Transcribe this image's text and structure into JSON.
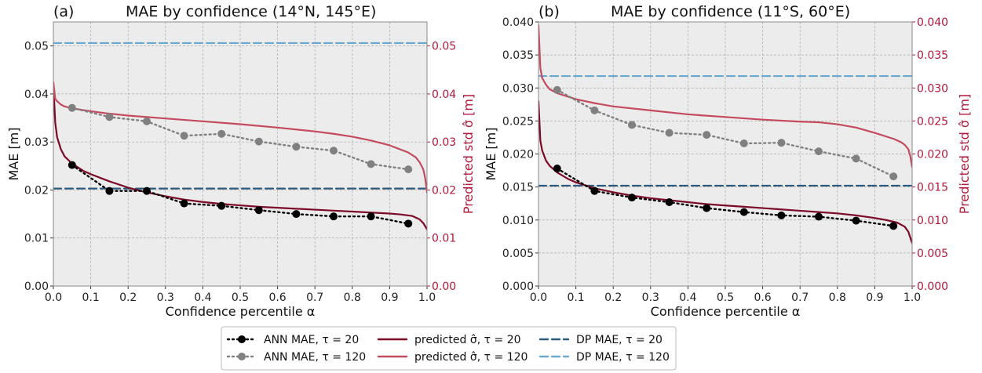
{
  "chart_data": [
    {
      "type": "line",
      "panel_label": "(a)",
      "title": "MAE by confidence (14°N, 145°E)",
      "xlabel": "Confidence percentile α",
      "ylabel": "MAE [m]",
      "ylabel_right": "Predicted std σ̂ [m]",
      "xlim": [
        0,
        1
      ],
      "ylim": [
        0,
        0.055
      ],
      "ylim_right": [
        0,
        0.055
      ],
      "xticks": [
        "0.0",
        "0.1",
        "0.2",
        "0.3",
        "0.4",
        "0.5",
        "0.6",
        "0.7",
        "0.8",
        "0.9",
        "1.0"
      ],
      "yticks": [
        "0.00",
        "0.01",
        "0.02",
        "0.03",
        "0.04",
        "0.05"
      ],
      "yticks_right": [
        "0.00",
        "0.01",
        "0.02",
        "0.03",
        "0.04",
        "0.05"
      ],
      "grid": true,
      "series": [
        {
          "name": "ANN MAE, τ = 20",
          "style": "dotted-marker",
          "color": "#000000",
          "x": [
            0.05,
            0.15,
            0.25,
            0.35,
            0.45,
            0.55,
            0.65,
            0.75,
            0.85,
            0.95
          ],
          "y": [
            0.0252,
            0.0198,
            0.0198,
            0.0172,
            0.0167,
            0.0158,
            0.015,
            0.0145,
            0.0145,
            0.013
          ]
        },
        {
          "name": "ANN MAE, τ = 120",
          "style": "dotted-marker",
          "color": "#808080",
          "x": [
            0.05,
            0.15,
            0.25,
            0.35,
            0.45,
            0.55,
            0.65,
            0.75,
            0.85,
            0.95
          ],
          "y": [
            0.0371,
            0.0352,
            0.0343,
            0.0313,
            0.0317,
            0.0301,
            0.029,
            0.0282,
            0.0254,
            0.0243
          ]
        },
        {
          "name": "predicted σ̂, τ = 20",
          "style": "solid",
          "color": "#7a0a25",
          "x": [
            0,
            0.005,
            0.01,
            0.02,
            0.03,
            0.05,
            0.08,
            0.1,
            0.15,
            0.2,
            0.25,
            0.3,
            0.35,
            0.4,
            0.45,
            0.5,
            0.55,
            0.6,
            0.65,
            0.7,
            0.75,
            0.8,
            0.85,
            0.9,
            0.93,
            0.96,
            0.98,
            0.99,
            1.0
          ],
          "y": [
            0.042,
            0.034,
            0.031,
            0.0285,
            0.027,
            0.0255,
            0.024,
            0.0233,
            0.0218,
            0.0205,
            0.0195,
            0.0187,
            0.018,
            0.0175,
            0.0171,
            0.0168,
            0.0165,
            0.0163,
            0.0161,
            0.0159,
            0.0157,
            0.0155,
            0.0153,
            0.0151,
            0.0149,
            0.0146,
            0.0139,
            0.0131,
            0.0118
          ]
        },
        {
          "name": "predicted σ̂, τ = 120",
          "style": "solid",
          "color": "#c44a5e",
          "x": [
            0,
            0.005,
            0.01,
            0.02,
            0.03,
            0.05,
            0.1,
            0.15,
            0.2,
            0.3,
            0.4,
            0.5,
            0.6,
            0.7,
            0.75,
            0.8,
            0.85,
            0.9,
            0.95,
            0.97,
            0.98,
            0.99,
            0.995,
            1.0
          ],
          "y": [
            0.0425,
            0.039,
            0.0385,
            0.0378,
            0.0374,
            0.037,
            0.0364,
            0.0359,
            0.0355,
            0.0349,
            0.0343,
            0.0337,
            0.033,
            0.0322,
            0.0317,
            0.0311,
            0.0303,
            0.0293,
            0.0278,
            0.0268,
            0.0258,
            0.0243,
            0.0225,
            0.0195
          ]
        },
        {
          "name": "DP MAE, τ = 20",
          "style": "dashed",
          "color": "#2a5a7f",
          "x": [
            0,
            1
          ],
          "y": [
            0.0203,
            0.0203
          ]
        },
        {
          "name": "DP MAE, τ = 120",
          "style": "dashed",
          "color": "#6aa9cf",
          "x": [
            0,
            1
          ],
          "y": [
            0.0506,
            0.0506
          ]
        }
      ]
    },
    {
      "type": "line",
      "panel_label": "(b)",
      "title": "MAE by confidence (11°S, 60°E)",
      "xlabel": "Confidence percentile α",
      "ylabel": "MAE [m]",
      "ylabel_right": "Predicted std σ̂ [m]",
      "xlim": [
        0,
        1
      ],
      "ylim": [
        0,
        0.04
      ],
      "ylim_right": [
        0,
        0.04
      ],
      "xticks": [
        "0.0",
        "0.1",
        "0.2",
        "0.3",
        "0.4",
        "0.5",
        "0.6",
        "0.7",
        "0.8",
        "0.9",
        "1.0"
      ],
      "yticks": [
        "0.000",
        "0.005",
        "0.010",
        "0.015",
        "0.020",
        "0.025",
        "0.030",
        "0.035",
        "0.040"
      ],
      "yticks_right": [
        "0.000",
        "0.005",
        "0.010",
        "0.015",
        "0.020",
        "0.025",
        "0.030",
        "0.035",
        "0.040"
      ],
      "grid": true,
      "series": [
        {
          "name": "ANN MAE, τ = 20",
          "style": "dotted-marker",
          "color": "#000000",
          "x": [
            0.05,
            0.15,
            0.25,
            0.35,
            0.45,
            0.55,
            0.65,
            0.75,
            0.85,
            0.95
          ],
          "y": [
            0.0178,
            0.0144,
            0.0134,
            0.0127,
            0.0118,
            0.0112,
            0.0107,
            0.0105,
            0.0099,
            0.0091
          ]
        },
        {
          "name": "ANN MAE, τ = 120",
          "style": "dotted-marker",
          "color": "#808080",
          "x": [
            0.05,
            0.15,
            0.25,
            0.35,
            0.45,
            0.55,
            0.65,
            0.75,
            0.85,
            0.95
          ],
          "y": [
            0.0297,
            0.0266,
            0.0244,
            0.0232,
            0.0229,
            0.0216,
            0.0217,
            0.0204,
            0.0193,
            0.0166
          ]
        },
        {
          "name": "predicted σ̂, τ = 20",
          "style": "solid",
          "color": "#7a0a25",
          "x": [
            0,
            0.005,
            0.01,
            0.02,
            0.03,
            0.05,
            0.08,
            0.1,
            0.15,
            0.2,
            0.25,
            0.3,
            0.35,
            0.4,
            0.45,
            0.5,
            0.55,
            0.6,
            0.65,
            0.7,
            0.75,
            0.8,
            0.85,
            0.9,
            0.93,
            0.96,
            0.98,
            0.99,
            1.0
          ],
          "y": [
            0.028,
            0.022,
            0.0205,
            0.019,
            0.0182,
            0.0172,
            0.0162,
            0.0157,
            0.0148,
            0.0142,
            0.0137,
            0.0133,
            0.013,
            0.0127,
            0.0124,
            0.0122,
            0.012,
            0.0118,
            0.0116,
            0.0114,
            0.0112,
            0.011,
            0.0107,
            0.0103,
            0.01,
            0.0096,
            0.009,
            0.0082,
            0.0065
          ]
        },
        {
          "name": "predicted σ̂, τ = 120",
          "style": "solid",
          "color": "#c44a5e",
          "x": [
            0,
            0.005,
            0.01,
            0.02,
            0.03,
            0.05,
            0.1,
            0.15,
            0.2,
            0.3,
            0.4,
            0.5,
            0.6,
            0.7,
            0.75,
            0.8,
            0.85,
            0.9,
            0.95,
            0.97,
            0.98,
            0.99,
            0.995,
            1.0
          ],
          "y": [
            0.0395,
            0.033,
            0.0315,
            0.0305,
            0.0298,
            0.0292,
            0.0283,
            0.0277,
            0.0272,
            0.0266,
            0.026,
            0.0256,
            0.0252,
            0.0249,
            0.0248,
            0.0245,
            0.024,
            0.0232,
            0.0223,
            0.0218,
            0.0214,
            0.0207,
            0.0197,
            0.018
          ]
        },
        {
          "name": "DP MAE, τ = 20",
          "style": "dashed",
          "color": "#2a5a7f",
          "x": [
            0,
            1
          ],
          "y": [
            0.0152,
            0.0152
          ]
        },
        {
          "name": "DP MAE, τ = 120",
          "style": "dashed",
          "color": "#6aa9cf",
          "x": [
            0,
            1
          ],
          "y": [
            0.0318,
            0.0318
          ]
        }
      ]
    }
  ],
  "legend": {
    "placement": "bottom-center",
    "entries": [
      {
        "label": "ANN MAE, τ = 20",
        "style": "dotted-marker",
        "color": "#000000"
      },
      {
        "label": "ANN MAE, τ = 120",
        "style": "dotted-marker",
        "color": "#808080"
      },
      {
        "label": "predicted σ̂, τ = 20",
        "style": "solid",
        "color": "#7a0a25"
      },
      {
        "label": "predicted σ̂, τ = 120",
        "style": "solid",
        "color": "#c44a5e"
      },
      {
        "label": "DP MAE, τ = 20",
        "style": "dashed",
        "color": "#2a5a7f"
      },
      {
        "label": "DP MAE, τ = 120",
        "style": "dashed",
        "color": "#6aa9cf"
      }
    ]
  },
  "colors": {
    "panel_bg": "#ececec",
    "grid": "#aaaaaa",
    "right_axis": "#b2183a"
  }
}
